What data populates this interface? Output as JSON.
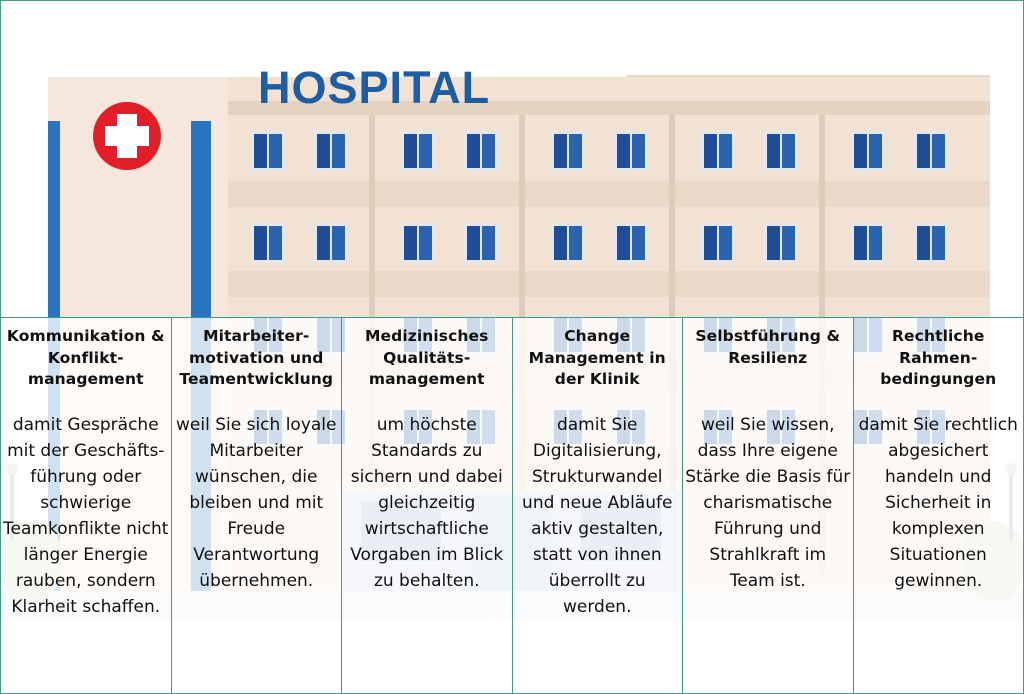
{
  "sign": {
    "text": "HOSPITAL"
  },
  "columns": [
    {
      "title": "Kommunikation & Konflikt-management",
      "text": "damit Gespräche mit der Geschäfts-führung oder schwierige Teamkonflikte nicht länger Energie rauben, sondern Klarheit schaffen."
    },
    {
      "title": "Mitarbeiter-motivation und Teamentwicklung",
      "text": "weil Sie sich loyale Mitarbeiter wünschen, die bleiben und mit Freude Verantwortung übernehmen."
    },
    {
      "title": "Medizinisches Qualitäts-management",
      "text": "um höchste Standards zu sichern und dabei gleichzeitig wirtschaftliche Vorgaben im Blick zu behalten."
    },
    {
      "title": "Change Management in der Klinik",
      "text": "damit Sie Digitalisierung, Strukturwandel und neue Abläufe aktiv gestalten, statt von ihnen überrollt zu werden."
    },
    {
      "title": "Selbstführung & Resilienz",
      "text": "weil Sie wissen, dass Ihre eigene Stärke die Basis für charismatische Führung und Strahlkraft im Team ist."
    },
    {
      "title": "Rechtliche Rahmen-bedingungen",
      "text": "damit Sie rechtlich abgesichert handeln und Sicherheit in komplexen Situationen gewinnen."
    }
  ],
  "colors": {
    "border": "#3f9a85",
    "sign": "#1d5da4",
    "cross_bg": "#e21f26",
    "building": "#f2e2d4",
    "window": "#1f4e96"
  },
  "icons": [
    "red-cross-icon",
    "street-lamp-icon"
  ]
}
